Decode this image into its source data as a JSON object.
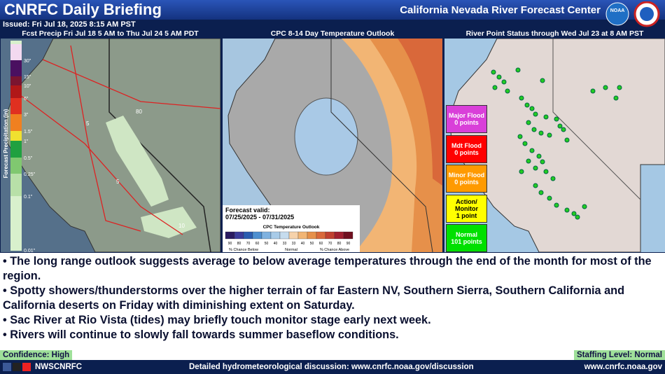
{
  "header": {
    "title": "CNRFC Daily Briefing",
    "center": "California Nevada River Forecast Center",
    "logo": "NOAA",
    "issued": "Issued: Fri Jul 18, 2025 8:15 AM PST"
  },
  "panels": [
    {
      "title": "Fcst Precip Fri Jul 18 5 AM to Thu Jul 24 5 AM PDT",
      "legend_title": "Forecast Precipitation (in)",
      "legend_labels": [
        "30\"",
        "15\"",
        "10\"",
        "6\"",
        "3\"",
        "1.5\"",
        "1\"",
        "0.5\"",
        "0.25\"",
        "0.1\"",
        "0.01\""
      ],
      "road_labels": [
        "5",
        "80",
        "5",
        "10"
      ]
    },
    {
      "title": "CPC 8-14 Day Temperature Outlook",
      "valid_label": "Forecast valid:",
      "valid_range": "07/25/2025 - 07/31/2025",
      "legend_title": "CPC Temperature Outlook",
      "legend_ticks": [
        "90",
        "80",
        "70",
        "60",
        "50",
        "40",
        "33",
        "33",
        "40",
        "50",
        "60",
        "70",
        "80",
        "90"
      ],
      "legend_below": "% Chance Below",
      "legend_normal": "Normal",
      "legend_above": "% Chance Above"
    },
    {
      "title": "River Point Status through Wed Jul 23 at 8 AM PST",
      "status": [
        {
          "label": "Major Flood",
          "count": "0 points"
        },
        {
          "label": "Mdt Flood",
          "count": "0 points"
        },
        {
          "label": "Minor Flood",
          "count": "0 points"
        },
        {
          "label": "Action/ Monitor",
          "count": "1 point"
        },
        {
          "label": "Normal",
          "count": "101 points"
        }
      ]
    }
  ],
  "bullets": [
    "• The long range outlook suggests average to below average temperatures through the end of the month for most of the region.",
    "• Spotty showers/thunderstorms over the higher terrain of far Eastern NV,  Southern Sierra, Southern California and California deserts on Friday with diminishing extent on Saturday.",
    "• Sac River at Rio Vista (tides) may briefly touch monitor stage early next week.",
    "• Rivers will continue to slowly fall towards summer baseflow conditions."
  ],
  "confidence": "Confidence: High",
  "staffing": "Staffing Level: Normal",
  "footer": {
    "social": "NWSCNRFC",
    "discussion": "Detailed hydrometeorological discussion: www.cnrfc.noaa.gov/discussion",
    "website": "www.cnrfc.noaa.gov"
  }
}
